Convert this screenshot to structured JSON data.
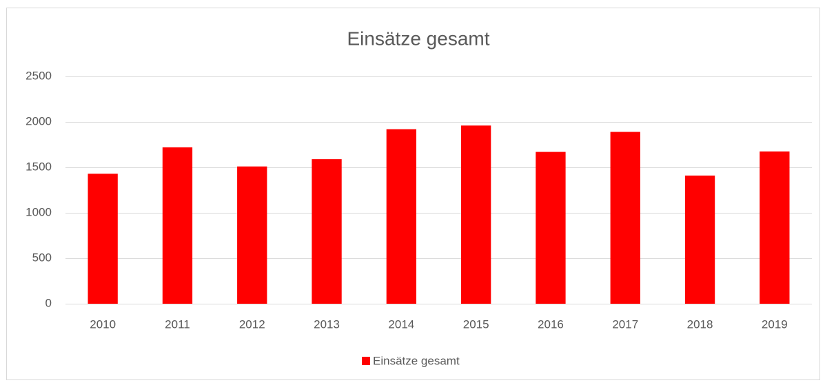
{
  "chart_data": {
    "type": "bar",
    "title": "Einsätze gesamt",
    "categories": [
      "2010",
      "2011",
      "2012",
      "2013",
      "2014",
      "2015",
      "2016",
      "2017",
      "2018",
      "2019"
    ],
    "series": [
      {
        "name": "Einsätze gesamt",
        "color": "#ff0000",
        "values": [
          1430,
          1720,
          1510,
          1590,
          1920,
          1960,
          1670,
          1890,
          1410,
          1675
        ]
      }
    ],
    "ylim": [
      0,
      2500
    ],
    "yticks": [
      0,
      500,
      1000,
      1500,
      2000,
      2500
    ],
    "grid": true,
    "legend": "bottom"
  }
}
